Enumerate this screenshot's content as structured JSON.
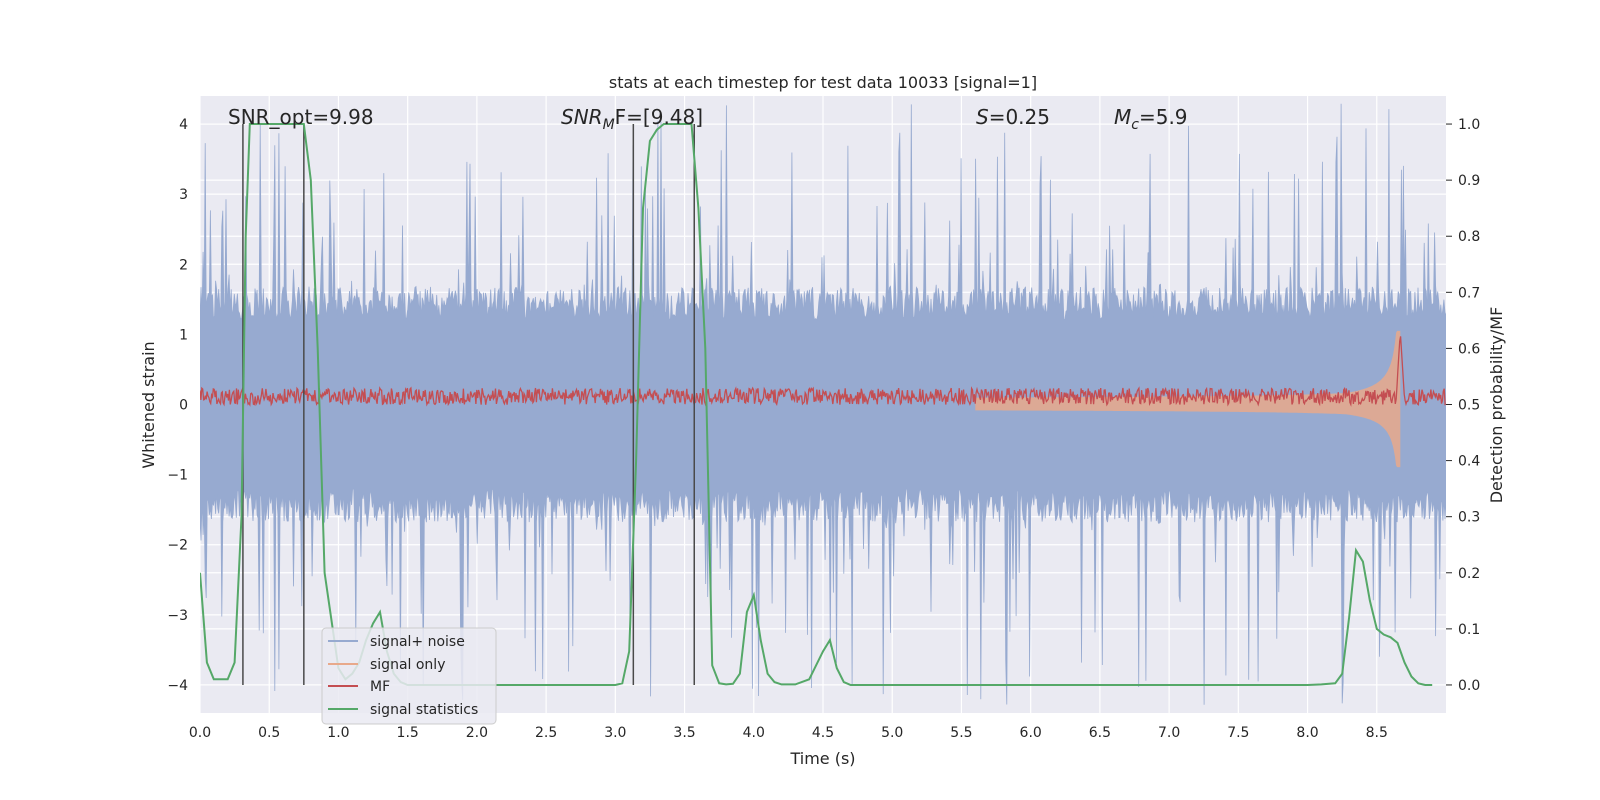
{
  "chart_data": {
    "type": "line",
    "title": "stats at each timestep for test data 10033 [signal=1]",
    "xlabel": "Time (s)",
    "ylabel_left": "Whitened strain",
    "ylabel_right": "Detection probability/MF",
    "xlim": [
      0,
      9.0
    ],
    "ylim_left": [
      -4.4,
      4.4
    ],
    "ylim_right": [
      -0.05,
      1.05
    ],
    "x_ticks": [
      "0.0",
      "0.5",
      "1.0",
      "1.5",
      "2.0",
      "2.5",
      "3.0",
      "3.5",
      "4.0",
      "4.5",
      "5.0",
      "5.5",
      "6.0",
      "6.5",
      "7.0",
      "7.5",
      "8.0",
      "8.5"
    ],
    "y_ticks_left": [
      "−4",
      "−3",
      "−2",
      "−1",
      "0",
      "1",
      "2",
      "3",
      "4"
    ],
    "y_ticks_right": [
      "0.0",
      "0.1",
      "0.2",
      "0.3",
      "0.4",
      "0.5",
      "0.6",
      "0.7",
      "0.8",
      "0.9",
      "1.0"
    ],
    "grid": true,
    "legend_position": "lower-left",
    "annotations": {
      "snr_opt": "SNR_opt=9.98",
      "snr_mf_main": "SNR",
      "snr_mf_sub": "M",
      "snr_mf_tail": "F=[9.48]",
      "s_main": "S",
      "s_tail": "=0.25",
      "mc_main": "M",
      "mc_sub": "c",
      "mc_tail": "=5.9"
    },
    "series": [
      {
        "name": "signal+ noise",
        "color": "#97aad0",
        "axis": "left",
        "envelope": 1.6,
        "peak_max": 4.3
      },
      {
        "name": "signal only",
        "color": "#e8a98b",
        "axis": "left",
        "merger_time": 8.67,
        "peak_amplitude": 1.05
      },
      {
        "name": "MF",
        "color": "#c44e52",
        "axis": "right",
        "baseline": 0.51
      },
      {
        "name": "signal statistics",
        "color": "#55a868",
        "axis": "right",
        "x": [
          0.0,
          0.05,
          0.1,
          0.2,
          0.25,
          0.3,
          0.33,
          0.36,
          0.4,
          0.5,
          0.6,
          0.7,
          0.75,
          0.8,
          0.85,
          0.9,
          1.0,
          1.05,
          1.1,
          1.15,
          1.2,
          1.25,
          1.3,
          1.35,
          1.4,
          1.45,
          1.5,
          1.6,
          1.8,
          2.0,
          2.5,
          3.0,
          3.05,
          3.1,
          3.15,
          3.2,
          3.25,
          3.3,
          3.35,
          3.4,
          3.5,
          3.55,
          3.6,
          3.65,
          3.7,
          3.75,
          3.8,
          3.85,
          3.9,
          3.95,
          4.0,
          4.05,
          4.1,
          4.15,
          4.2,
          4.25,
          4.3,
          4.4,
          4.5,
          4.55,
          4.6,
          4.65,
          4.7,
          4.75,
          4.8,
          4.85,
          5.0,
          6.0,
          7.0,
          8.0,
          8.1,
          8.2,
          8.25,
          8.3,
          8.35,
          8.4,
          8.45,
          8.5,
          8.55,
          8.6,
          8.65,
          8.7,
          8.75,
          8.8,
          8.85,
          8.9
        ],
        "values": [
          0.2,
          0.04,
          0.01,
          0.01,
          0.04,
          0.3,
          0.8,
          1.0,
          1.0,
          1.0,
          1.0,
          1.0,
          1.0,
          0.9,
          0.6,
          0.2,
          0.03,
          0.01,
          0.02,
          0.04,
          0.08,
          0.11,
          0.13,
          0.06,
          0.02,
          0.005,
          0.0,
          0.0,
          0.0,
          0.0,
          0.0,
          0.0,
          0.003,
          0.06,
          0.4,
          0.85,
          0.97,
          0.99,
          1.0,
          1.0,
          1.0,
          1.0,
          0.85,
          0.6,
          0.035,
          0.003,
          0.001,
          0.002,
          0.02,
          0.13,
          0.16,
          0.08,
          0.02,
          0.005,
          0.001,
          0.001,
          0.001,
          0.01,
          0.06,
          0.08,
          0.03,
          0.005,
          0.0,
          0.0,
          0.0,
          0.0,
          0.0,
          0.0,
          0.0,
          0.0,
          0.001,
          0.003,
          0.02,
          0.12,
          0.24,
          0.22,
          0.15,
          0.1,
          0.09,
          0.085,
          0.075,
          0.04,
          0.015,
          0.003,
          0.0,
          0.0
        ]
      },
      {
        "name": "",
        "type": "vlines",
        "color": "#4a4a4a",
        "x": [
          0.31,
          0.75,
          3.13,
          3.57
        ]
      }
    ]
  }
}
